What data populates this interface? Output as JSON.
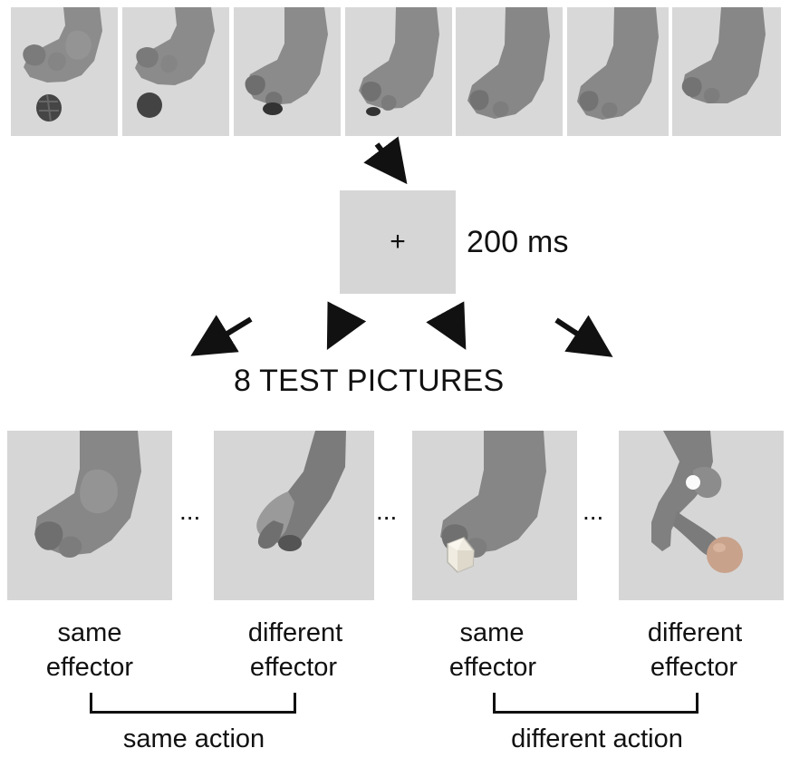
{
  "fixation": {
    "symbol": "+",
    "duration_label": "200 ms"
  },
  "test_section": {
    "title": "8 TEST PICTURES",
    "ellipsis": "..."
  },
  "labels": {
    "same_effector_1_line1": "same",
    "same_effector_1_line2": "effector",
    "different_effector_1_line1": "different",
    "different_effector_1_line2": "effector",
    "same_effector_2_line1": "same",
    "same_effector_2_line2": "effector",
    "different_effector_2_line1": "different",
    "different_effector_2_line2": "effector"
  },
  "groups": {
    "same_action": "same action",
    "different_action": "different action"
  },
  "icons": [
    "foot-image",
    "hand-image",
    "ball-image",
    "cube-image",
    "arrow-icon"
  ],
  "colors": {
    "panel_gray": "#dcdcdc",
    "foot_gray": "#8a8a8a",
    "dark_gray": "#555555",
    "text_black": "#111111"
  }
}
